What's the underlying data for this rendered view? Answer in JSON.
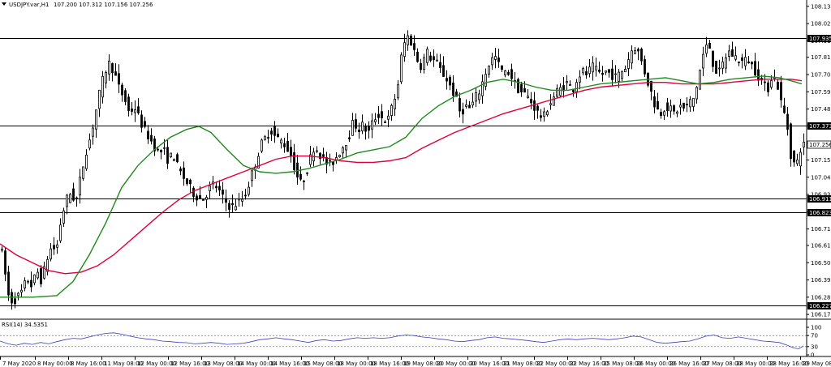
{
  "header": {
    "symbol": "USDJPY.var,H1",
    "ohlc": "107.200 107.312 107.156 107.256"
  },
  "rsi": {
    "label": "RSI(14) 34.5351",
    "levels": [
      "100",
      "70",
      "30",
      "0"
    ],
    "level_values": [
      100,
      70,
      30,
      0
    ]
  },
  "chart_data": {
    "type": "candlestick",
    "price_ticks": [
      "108.135",
      "108.025",
      "107.915",
      "107.810",
      "107.700",
      "107.590",
      "107.480",
      "107.373",
      "107.256",
      "107.155",
      "107.045",
      "106.935",
      "106.823",
      "106.715",
      "106.610",
      "106.500",
      "106.390",
      "106.280",
      "106.170"
    ],
    "price_tick_values": [
      108.135,
      108.025,
      107.915,
      107.81,
      107.7,
      107.59,
      107.48,
      107.373,
      107.256,
      107.155,
      107.045,
      106.935,
      106.823,
      106.715,
      106.61,
      106.5,
      106.39,
      106.28,
      106.17
    ],
    "ylim": [
      106.15,
      108.165
    ],
    "horizontal_levels": [
      {
        "value": 107.935,
        "label": "107.935"
      },
      {
        "value": 107.373,
        "label": "107.373"
      },
      {
        "value": 106.911,
        "label": "106.911"
      },
      {
        "value": 106.823,
        "label": "106.823"
      },
      {
        "value": 106.227,
        "label": "106.227"
      }
    ],
    "current_price": {
      "value": 107.256,
      "label": "107.256"
    },
    "x_ticks": [
      "7 May 2020",
      "8 May 00:00",
      "8 May 16:00",
      "11 May 08:00",
      "12 May 00:00",
      "12 May 16:00",
      "13 May 08:00",
      "14 May 00:00",
      "14 May 16:00",
      "15 May 08:00",
      "18 May 00:00",
      "18 May 16:00",
      "19 May 08:00",
      "20 May 00:00",
      "20 May 16:00",
      "21 May 08:00",
      "22 May 00:00",
      "22 May 16:00",
      "25 May 08:00",
      "26 May 00:00",
      "26 May 16:00",
      "27 May 08:00",
      "28 May 00:00",
      "28 May 16:00",
      "29 May 08:00"
    ],
    "x_tick_positions": [
      0,
      43,
      84,
      125,
      166,
      207,
      248,
      289,
      330,
      371,
      412,
      453,
      494,
      535,
      576,
      617,
      658,
      699,
      740,
      781,
      822,
      863,
      904,
      945,
      986
    ],
    "series_colors": {
      "bull": "#000000",
      "bear": "#000000",
      "ma_fast": "#1f8a1f",
      "ma_slow": "#e0003c",
      "rsi": "#3d3dbf",
      "level": "#000000"
    },
    "price_path": [
      [
        0,
        106.62
      ],
      [
        6,
        106.55
      ],
      [
        12,
        106.3
      ],
      [
        18,
        106.25
      ],
      [
        24,
        106.28
      ],
      [
        30,
        106.32
      ],
      [
        36,
        106.4
      ],
      [
        42,
        106.35
      ],
      [
        48,
        106.45
      ],
      [
        54,
        106.38
      ],
      [
        60,
        106.52
      ],
      [
        66,
        106.6
      ],
      [
        72,
        106.58
      ],
      [
        78,
        106.78
      ],
      [
        84,
        106.9
      ],
      [
        90,
        106.95
      ],
      [
        96,
        106.88
      ],
      [
        102,
        107.05
      ],
      [
        108,
        107.2
      ],
      [
        114,
        107.3
      ],
      [
        120,
        107.45
      ],
      [
        126,
        107.6
      ],
      [
        132,
        107.72
      ],
      [
        138,
        107.78
      ],
      [
        144,
        107.7
      ],
      [
        150,
        107.6
      ],
      [
        156,
        107.55
      ],
      [
        162,
        107.45
      ],
      [
        168,
        107.5
      ],
      [
        174,
        107.42
      ],
      [
        180,
        107.35
      ],
      [
        186,
        107.3
      ],
      [
        192,
        107.25
      ],
      [
        198,
        107.2
      ],
      [
        204,
        107.22
      ],
      [
        210,
        107.15
      ],
      [
        216,
        107.2
      ],
      [
        222,
        107.1
      ],
      [
        228,
        107.05
      ],
      [
        234,
        107.0
      ],
      [
        240,
        106.95
      ],
      [
        246,
        106.92
      ],
      [
        252,
        106.9
      ],
      [
        258,
        106.95
      ],
      [
        264,
        107.0
      ],
      [
        270,
        106.98
      ],
      [
        276,
        106.92
      ],
      [
        282,
        106.88
      ],
      [
        288,
        106.85
      ],
      [
        294,
        106.88
      ],
      [
        300,
        106.9
      ],
      [
        306,
        106.95
      ],
      [
        312,
        107.05
      ],
      [
        318,
        107.15
      ],
      [
        324,
        107.25
      ],
      [
        330,
        107.3
      ],
      [
        336,
        107.35
      ],
      [
        342,
        107.3
      ],
      [
        348,
        107.28
      ],
      [
        354,
        107.25
      ],
      [
        360,
        107.2
      ],
      [
        366,
        107.1
      ],
      [
        372,
        107.0
      ],
      [
        378,
        107.05
      ],
      [
        384,
        107.15
      ],
      [
        390,
        107.25
      ],
      [
        396,
        107.2
      ],
      [
        402,
        107.15
      ],
      [
        408,
        107.12
      ],
      [
        414,
        107.15
      ],
      [
        420,
        107.2
      ],
      [
        426,
        107.25
      ],
      [
        432,
        107.3
      ],
      [
        438,
        107.4
      ],
      [
        444,
        107.35
      ],
      [
        450,
        107.38
      ],
      [
        456,
        107.32
      ],
      [
        462,
        107.4
      ],
      [
        468,
        107.45
      ],
      [
        474,
        107.42
      ],
      [
        480,
        107.4
      ],
      [
        486,
        107.5
      ],
      [
        492,
        107.6
      ],
      [
        498,
        107.85
      ],
      [
        504,
        107.95
      ],
      [
        510,
        107.9
      ],
      [
        516,
        107.8
      ],
      [
        522,
        107.75
      ],
      [
        528,
        107.85
      ],
      [
        534,
        107.8
      ],
      [
        540,
        107.78
      ],
      [
        546,
        107.72
      ],
      [
        552,
        107.68
      ],
      [
        558,
        107.62
      ],
      [
        564,
        107.55
      ],
      [
        570,
        107.45
      ],
      [
        576,
        107.5
      ],
      [
        582,
        107.48
      ],
      [
        588,
        107.55
      ],
      [
        594,
        107.6
      ],
      [
        600,
        107.7
      ],
      [
        606,
        107.78
      ],
      [
        612,
        107.82
      ],
      [
        618,
        107.75
      ],
      [
        624,
        107.7
      ],
      [
        630,
        107.72
      ],
      [
        636,
        107.65
      ],
      [
        642,
        107.6
      ],
      [
        648,
        107.58
      ],
      [
        654,
        107.55
      ],
      [
        660,
        107.5
      ],
      [
        666,
        107.45
      ],
      [
        672,
        107.42
      ],
      [
        678,
        107.5
      ],
      [
        684,
        107.55
      ],
      [
        690,
        107.6
      ],
      [
        696,
        107.62
      ],
      [
        702,
        107.65
      ],
      [
        708,
        107.6
      ],
      [
        714,
        107.68
      ],
      [
        720,
        107.72
      ],
      [
        726,
        107.7
      ],
      [
        732,
        107.75
      ],
      [
        738,
        107.72
      ],
      [
        744,
        107.7
      ],
      [
        750,
        107.72
      ],
      [
        756,
        107.7
      ],
      [
        762,
        107.68
      ],
      [
        768,
        107.72
      ],
      [
        774,
        107.75
      ],
      [
        780,
        107.85
      ],
      [
        786,
        107.88
      ],
      [
        792,
        107.8
      ],
      [
        798,
        107.7
      ],
      [
        804,
        107.6
      ],
      [
        810,
        107.5
      ],
      [
        816,
        107.45
      ],
      [
        822,
        107.5
      ],
      [
        828,
        107.48
      ],
      [
        834,
        107.45
      ],
      [
        840,
        107.5
      ],
      [
        846,
        107.48
      ],
      [
        852,
        107.52
      ],
      [
        858,
        107.55
      ],
      [
        864,
        107.7
      ],
      [
        870,
        107.85
      ],
      [
        876,
        107.9
      ],
      [
        882,
        107.75
      ],
      [
        888,
        107.7
      ],
      [
        894,
        107.78
      ],
      [
        900,
        107.85
      ],
      [
        906,
        107.82
      ],
      [
        912,
        107.8
      ],
      [
        918,
        107.78
      ],
      [
        924,
        107.8
      ],
      [
        930,
        107.75
      ],
      [
        936,
        107.7
      ],
      [
        942,
        107.65
      ],
      [
        948,
        107.6
      ],
      [
        954,
        107.7
      ],
      [
        960,
        107.65
      ],
      [
        966,
        107.5
      ],
      [
        972,
        107.4
      ],
      [
        978,
        107.15
      ],
      [
        984,
        107.12
      ],
      [
        990,
        107.25
      ]
    ],
    "ma_fast_path": [
      [
        0,
        106.28
      ],
      [
        40,
        106.28
      ],
      [
        70,
        106.29
      ],
      [
        90,
        106.38
      ],
      [
        110,
        106.55
      ],
      [
        130,
        106.75
      ],
      [
        150,
        106.98
      ],
      [
        170,
        107.12
      ],
      [
        190,
        107.22
      ],
      [
        210,
        107.3
      ],
      [
        230,
        107.35
      ],
      [
        245,
        107.37
      ],
      [
        260,
        107.33
      ],
      [
        280,
        107.22
      ],
      [
        300,
        107.12
      ],
      [
        320,
        107.08
      ],
      [
        340,
        107.07
      ],
      [
        360,
        107.08
      ],
      [
        380,
        107.1
      ],
      [
        400,
        107.13
      ],
      [
        420,
        107.16
      ],
      [
        440,
        107.2
      ],
      [
        460,
        107.22
      ],
      [
        480,
        107.24
      ],
      [
        500,
        107.3
      ],
      [
        520,
        107.42
      ],
      [
        540,
        107.5
      ],
      [
        560,
        107.56
      ],
      [
        580,
        107.6
      ],
      [
        600,
        107.65
      ],
      [
        620,
        107.67
      ],
      [
        640,
        107.65
      ],
      [
        660,
        107.62
      ],
      [
        680,
        107.6
      ],
      [
        700,
        107.6
      ],
      [
        720,
        107.62
      ],
      [
        740,
        107.64
      ],
      [
        760,
        107.65
      ],
      [
        780,
        107.66
      ],
      [
        800,
        107.67
      ],
      [
        820,
        107.68
      ],
      [
        840,
        107.66
      ],
      [
        860,
        107.64
      ],
      [
        880,
        107.65
      ],
      [
        900,
        107.67
      ],
      [
        920,
        107.68
      ],
      [
        940,
        107.69
      ],
      [
        960,
        107.68
      ],
      [
        975,
        107.66
      ],
      [
        988,
        107.64
      ]
    ],
    "ma_slow_path": [
      [
        0,
        106.62
      ],
      [
        20,
        106.55
      ],
      [
        40,
        106.5
      ],
      [
        60,
        106.45
      ],
      [
        80,
        106.43
      ],
      [
        100,
        106.44
      ],
      [
        120,
        106.48
      ],
      [
        140,
        106.55
      ],
      [
        160,
        106.64
      ],
      [
        180,
        106.73
      ],
      [
        200,
        106.82
      ],
      [
        220,
        106.9
      ],
      [
        240,
        106.96
      ],
      [
        260,
        107.0
      ],
      [
        280,
        107.04
      ],
      [
        300,
        107.08
      ],
      [
        320,
        107.12
      ],
      [
        340,
        107.16
      ],
      [
        360,
        107.18
      ],
      [
        380,
        107.18
      ],
      [
        400,
        107.17
      ],
      [
        420,
        107.15
      ],
      [
        440,
        107.14
      ],
      [
        460,
        107.14
      ],
      [
        480,
        107.15
      ],
      [
        500,
        107.17
      ],
      [
        520,
        107.23
      ],
      [
        540,
        107.28
      ],
      [
        560,
        107.33
      ],
      [
        580,
        107.37
      ],
      [
        600,
        107.41
      ],
      [
        620,
        107.45
      ],
      [
        640,
        107.48
      ],
      [
        660,
        107.51
      ],
      [
        680,
        107.54
      ],
      [
        700,
        107.57
      ],
      [
        720,
        107.6
      ],
      [
        740,
        107.62
      ],
      [
        760,
        107.63
      ],
      [
        780,
        107.64
      ],
      [
        800,
        107.65
      ],
      [
        820,
        107.65
      ],
      [
        840,
        107.64
      ],
      [
        860,
        107.64
      ],
      [
        880,
        107.64
      ],
      [
        900,
        107.65
      ],
      [
        920,
        107.66
      ],
      [
        940,
        107.67
      ],
      [
        960,
        107.67
      ],
      [
        975,
        107.67
      ],
      [
        988,
        107.66
      ]
    ],
    "rsi_path": [
      [
        0,
        50
      ],
      [
        10,
        40
      ],
      [
        20,
        35
      ],
      [
        30,
        42
      ],
      [
        40,
        38
      ],
      [
        50,
        45
      ],
      [
        60,
        40
      ],
      [
        70,
        48
      ],
      [
        80,
        55
      ],
      [
        90,
        60
      ],
      [
        100,
        58
      ],
      [
        110,
        65
      ],
      [
        120,
        72
      ],
      [
        130,
        78
      ],
      [
        140,
        80
      ],
      [
        150,
        75
      ],
      [
        160,
        68
      ],
      [
        170,
        62
      ],
      [
        180,
        58
      ],
      [
        190,
        55
      ],
      [
        200,
        50
      ],
      [
        210,
        48
      ],
      [
        220,
        45
      ],
      [
        230,
        44
      ],
      [
        240,
        40
      ],
      [
        250,
        42
      ],
      [
        260,
        45
      ],
      [
        270,
        42
      ],
      [
        280,
        38
      ],
      [
        290,
        40
      ],
      [
        300,
        42
      ],
      [
        310,
        48
      ],
      [
        320,
        55
      ],
      [
        330,
        58
      ],
      [
        340,
        62
      ],
      [
        350,
        58
      ],
      [
        360,
        55
      ],
      [
        370,
        50
      ],
      [
        380,
        45
      ],
      [
        390,
        52
      ],
      [
        400,
        55
      ],
      [
        410,
        50
      ],
      [
        420,
        52
      ],
      [
        430,
        58
      ],
      [
        440,
        62
      ],
      [
        450,
        60
      ],
      [
        460,
        62
      ],
      [
        470,
        60
      ],
      [
        480,
        62
      ],
      [
        490,
        68
      ],
      [
        500,
        72
      ],
      [
        510,
        70
      ],
      [
        520,
        65
      ],
      [
        530,
        62
      ],
      [
        540,
        58
      ],
      [
        550,
        55
      ],
      [
        560,
        50
      ],
      [
        570,
        48
      ],
      [
        580,
        52
      ],
      [
        590,
        55
      ],
      [
        600,
        62
      ],
      [
        610,
        65
      ],
      [
        620,
        60
      ],
      [
        630,
        58
      ],
      [
        640,
        55
      ],
      [
        650,
        52
      ],
      [
        660,
        48
      ],
      [
        670,
        45
      ],
      [
        680,
        50
      ],
      [
        690,
        55
      ],
      [
        700,
        58
      ],
      [
        710,
        55
      ],
      [
        720,
        58
      ],
      [
        730,
        60
      ],
      [
        740,
        58
      ],
      [
        750,
        55
      ],
      [
        760,
        58
      ],
      [
        770,
        62
      ],
      [
        780,
        68
      ],
      [
        790,
        65
      ],
      [
        800,
        55
      ],
      [
        810,
        45
      ],
      [
        820,
        42
      ],
      [
        830,
        45
      ],
      [
        840,
        48
      ],
      [
        850,
        50
      ],
      [
        860,
        58
      ],
      [
        870,
        68
      ],
      [
        880,
        72
      ],
      [
        890,
        62
      ],
      [
        900,
        60
      ],
      [
        910,
        65
      ],
      [
        920,
        60
      ],
      [
        930,
        55
      ],
      [
        940,
        50
      ],
      [
        950,
        48
      ],
      [
        960,
        45
      ],
      [
        970,
        35
      ],
      [
        978,
        25
      ],
      [
        984,
        22
      ],
      [
        990,
        32
      ]
    ]
  }
}
